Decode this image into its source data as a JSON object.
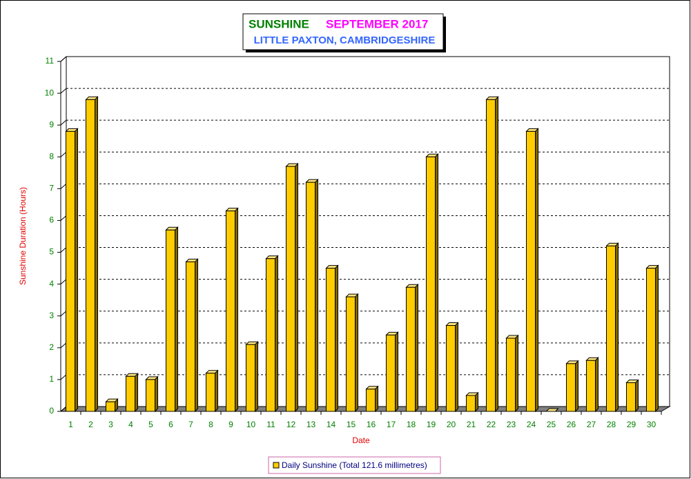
{
  "chart_data": {
    "type": "bar",
    "title": "SUNSHINE",
    "title_period": "SEPTEMBER 2017",
    "subtitle": "LITTLE PAXTON, CAMBRIDGESHIRE",
    "x_label": "Date",
    "y_label": "Sunshine Duration (Hours)",
    "categories": [
      "1",
      "2",
      "3",
      "4",
      "5",
      "6",
      "7",
      "8",
      "9",
      "10",
      "11",
      "12",
      "13",
      "14",
      "15",
      "16",
      "17",
      "18",
      "19",
      "20",
      "21",
      "22",
      "23",
      "24",
      "25",
      "26",
      "27",
      "28",
      "29",
      "30"
    ],
    "series": [
      {
        "name": "Daily Sunshine (Total 121.6 millimetres)",
        "color": "#ffcc00",
        "values": [
          8.8,
          9.8,
          0.3,
          1.1,
          1.0,
          5.7,
          4.7,
          1.2,
          6.3,
          2.1,
          4.8,
          7.7,
          7.2,
          4.5,
          3.6,
          0.7,
          2.4,
          3.9,
          8.0,
          2.7,
          0.5,
          9.8,
          2.3,
          8.8,
          0,
          1.5,
          1.6,
          5.2,
          0.9,
          4.5
        ]
      }
    ],
    "ylim": [
      0,
      11
    ],
    "yticks": [
      0,
      1,
      2,
      3,
      4,
      5,
      6,
      7,
      8,
      9,
      10,
      11
    ],
    "grid": true
  }
}
